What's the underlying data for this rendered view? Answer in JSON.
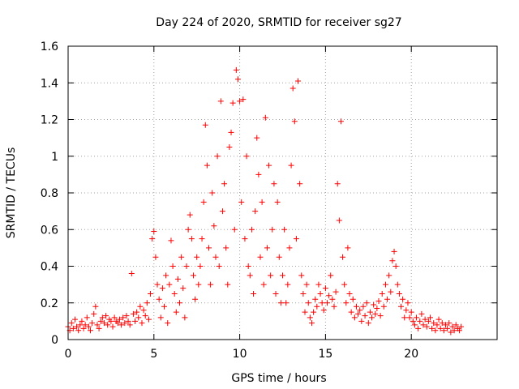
{
  "chart_data": {
    "type": "scatter",
    "title": "Day 224 of 2020, SRMTID for receiver sg27",
    "xlabel": "GPS time / hours",
    "ylabel": "SRMTID / TECUs",
    "xlim": [
      0,
      25
    ],
    "ylim": [
      0,
      1.6
    ],
    "grid": true,
    "marker": "+",
    "color": "#ff0000",
    "xticks": [
      {
        "value": 0,
        "label": "0"
      },
      {
        "value": 5,
        "label": "5"
      },
      {
        "value": 10,
        "label": "10"
      },
      {
        "value": 15,
        "label": "15"
      },
      {
        "value": 20,
        "label": "20"
      }
    ],
    "yticks": [
      {
        "value": 0,
        "label": "0"
      },
      {
        "value": 0.2,
        "label": "0.2"
      },
      {
        "value": 0.4,
        "label": "0.4"
      },
      {
        "value": 0.6,
        "label": "0.6"
      },
      {
        "value": 0.8,
        "label": "0.8"
      },
      {
        "value": 1.0,
        "label": "1"
      },
      {
        "value": 1.2,
        "label": "1.2"
      },
      {
        "value": 1.4,
        "label": "1.4"
      },
      {
        "value": 1.6,
        "label": "1.6"
      }
    ],
    "series": [
      {
        "name": "sg27",
        "points": [
          [
            0.0,
            0.07
          ],
          [
            0.1,
            0.05
          ],
          [
            0.2,
            0.09
          ],
          [
            0.3,
            0.06
          ],
          [
            0.4,
            0.11
          ],
          [
            0.5,
            0.07
          ],
          [
            0.6,
            0.05
          ],
          [
            0.7,
            0.08
          ],
          [
            0.8,
            0.1
          ],
          [
            0.9,
            0.06
          ],
          [
            1.0,
            0.08
          ],
          [
            1.1,
            0.12
          ],
          [
            1.2,
            0.07
          ],
          [
            1.3,
            0.05
          ],
          [
            1.4,
            0.09
          ],
          [
            1.5,
            0.14
          ],
          [
            1.6,
            0.18
          ],
          [
            1.7,
            0.08
          ],
          [
            1.8,
            0.06
          ],
          [
            1.9,
            0.1
          ],
          [
            2.0,
            0.12
          ],
          [
            2.1,
            0.09
          ],
          [
            2.2,
            0.13
          ],
          [
            2.3,
            0.08
          ],
          [
            2.4,
            0.11
          ],
          [
            2.5,
            0.1
          ],
          [
            2.6,
            0.07
          ],
          [
            2.7,
            0.12
          ],
          [
            2.8,
            0.1
          ],
          [
            2.9,
            0.09
          ],
          [
            3.0,
            0.11
          ],
          [
            3.1,
            0.08
          ],
          [
            3.2,
            0.12
          ],
          [
            3.3,
            0.09
          ],
          [
            3.4,
            0.13
          ],
          [
            3.5,
            0.1
          ],
          [
            3.6,
            0.08
          ],
          [
            3.7,
            0.36
          ],
          [
            3.8,
            0.14
          ],
          [
            3.9,
            0.1
          ],
          [
            4.0,
            0.15
          ],
          [
            4.1,
            0.12
          ],
          [
            4.2,
            0.18
          ],
          [
            4.3,
            0.09
          ],
          [
            4.4,
            0.16
          ],
          [
            4.5,
            0.13
          ],
          [
            4.6,
            0.2
          ],
          [
            4.7,
            0.11
          ],
          [
            4.8,
            0.25
          ],
          [
            4.9,
            0.55
          ],
          [
            5.0,
            0.59
          ],
          [
            5.1,
            0.45
          ],
          [
            5.2,
            0.3
          ],
          [
            5.3,
            0.22
          ],
          [
            5.4,
            0.12
          ],
          [
            5.5,
            0.28
          ],
          [
            5.6,
            0.18
          ],
          [
            5.7,
            0.35
          ],
          [
            5.8,
            0.09
          ],
          [
            5.9,
            0.3
          ],
          [
            6.0,
            0.54
          ],
          [
            6.1,
            0.4
          ],
          [
            6.2,
            0.25
          ],
          [
            6.3,
            0.15
          ],
          [
            6.4,
            0.33
          ],
          [
            6.5,
            0.2
          ],
          [
            6.6,
            0.45
          ],
          [
            6.7,
            0.28
          ],
          [
            6.8,
            0.12
          ],
          [
            6.9,
            0.4
          ],
          [
            7.0,
            0.6
          ],
          [
            7.1,
            0.68
          ],
          [
            7.2,
            0.55
          ],
          [
            7.3,
            0.35
          ],
          [
            7.4,
            0.22
          ],
          [
            7.5,
            0.45
          ],
          [
            7.6,
            0.3
          ],
          [
            7.7,
            0.4
          ],
          [
            7.8,
            0.55
          ],
          [
            7.9,
            0.75
          ],
          [
            8.0,
            1.17
          ],
          [
            8.1,
            0.95
          ],
          [
            8.2,
            0.5
          ],
          [
            8.3,
            0.3
          ],
          [
            8.4,
            0.8
          ],
          [
            8.5,
            0.62
          ],
          [
            8.6,
            0.45
          ],
          [
            8.7,
            1.0
          ],
          [
            8.8,
            0.4
          ],
          [
            8.9,
            1.3
          ],
          [
            9.0,
            0.7
          ],
          [
            9.1,
            0.85
          ],
          [
            9.2,
            0.5
          ],
          [
            9.3,
            0.3
          ],
          [
            9.4,
            1.05
          ],
          [
            9.5,
            1.13
          ],
          [
            9.6,
            1.29
          ],
          [
            9.7,
            0.6
          ],
          [
            9.8,
            1.47
          ],
          [
            9.9,
            1.42
          ],
          [
            10.0,
            1.3
          ],
          [
            10.1,
            0.75
          ],
          [
            10.2,
            1.31
          ],
          [
            10.3,
            0.55
          ],
          [
            10.4,
            1.0
          ],
          [
            10.5,
            0.4
          ],
          [
            10.6,
            0.35
          ],
          [
            10.7,
            0.6
          ],
          [
            10.8,
            0.25
          ],
          [
            10.9,
            0.7
          ],
          [
            11.0,
            1.1
          ],
          [
            11.1,
            0.9
          ],
          [
            11.2,
            0.45
          ],
          [
            11.3,
            0.75
          ],
          [
            11.4,
            0.3
          ],
          [
            11.5,
            1.21
          ],
          [
            11.6,
            0.5
          ],
          [
            11.7,
            0.95
          ],
          [
            11.8,
            0.35
          ],
          [
            11.9,
            0.6
          ],
          [
            12.0,
            0.85
          ],
          [
            12.1,
            0.25
          ],
          [
            12.2,
            0.75
          ],
          [
            12.3,
            0.45
          ],
          [
            12.4,
            0.2
          ],
          [
            12.5,
            0.35
          ],
          [
            12.6,
            0.6
          ],
          [
            12.7,
            0.2
          ],
          [
            12.8,
            0.3
          ],
          [
            12.9,
            0.5
          ],
          [
            13.0,
            0.95
          ],
          [
            13.1,
            1.37
          ],
          [
            13.2,
            1.19
          ],
          [
            13.3,
            0.55
          ],
          [
            13.4,
            1.41
          ],
          [
            13.5,
            0.85
          ],
          [
            13.6,
            0.35
          ],
          [
            13.7,
            0.25
          ],
          [
            13.8,
            0.15
          ],
          [
            13.9,
            0.3
          ],
          [
            14.0,
            0.2
          ],
          [
            14.1,
            0.12
          ],
          [
            14.2,
            0.09
          ],
          [
            14.3,
            0.15
          ],
          [
            14.4,
            0.22
          ],
          [
            14.5,
            0.18
          ],
          [
            14.6,
            0.3
          ],
          [
            14.7,
            0.25
          ],
          [
            14.8,
            0.2
          ],
          [
            14.9,
            0.16
          ],
          [
            15.0,
            0.28
          ],
          [
            15.1,
            0.2
          ],
          [
            15.2,
            0.24
          ],
          [
            15.3,
            0.35
          ],
          [
            15.4,
            0.22
          ],
          [
            15.5,
            0.18
          ],
          [
            15.6,
            0.26
          ],
          [
            15.7,
            0.85
          ],
          [
            15.8,
            0.65
          ],
          [
            15.9,
            1.19
          ],
          [
            16.0,
            0.45
          ],
          [
            16.1,
            0.3
          ],
          [
            16.2,
            0.2
          ],
          [
            16.3,
            0.5
          ],
          [
            16.4,
            0.25
          ],
          [
            16.5,
            0.15
          ],
          [
            16.6,
            0.22
          ],
          [
            16.7,
            0.12
          ],
          [
            16.8,
            0.18
          ],
          [
            16.9,
            0.14
          ],
          [
            17.0,
            0.16
          ],
          [
            17.1,
            0.1
          ],
          [
            17.2,
            0.18
          ],
          [
            17.3,
            0.13
          ],
          [
            17.4,
            0.2
          ],
          [
            17.5,
            0.09
          ],
          [
            17.6,
            0.15
          ],
          [
            17.7,
            0.12
          ],
          [
            17.8,
            0.19
          ],
          [
            17.9,
            0.14
          ],
          [
            18.0,
            0.17
          ],
          [
            18.1,
            0.21
          ],
          [
            18.2,
            0.13
          ],
          [
            18.3,
            0.25
          ],
          [
            18.4,
            0.18
          ],
          [
            18.5,
            0.3
          ],
          [
            18.6,
            0.22
          ],
          [
            18.7,
            0.35
          ],
          [
            18.8,
            0.26
          ],
          [
            18.9,
            0.43
          ],
          [
            19.0,
            0.48
          ],
          [
            19.1,
            0.4
          ],
          [
            19.2,
            0.3
          ],
          [
            19.3,
            0.25
          ],
          [
            19.4,
            0.18
          ],
          [
            19.5,
            0.22
          ],
          [
            19.6,
            0.12
          ],
          [
            19.7,
            0.16
          ],
          [
            19.8,
            0.2
          ],
          [
            19.9,
            0.12
          ],
          [
            20.0,
            0.15
          ],
          [
            20.1,
            0.1
          ],
          [
            20.2,
            0.08
          ],
          [
            20.3,
            0.12
          ],
          [
            20.4,
            0.06
          ],
          [
            20.5,
            0.1
          ],
          [
            20.6,
            0.14
          ],
          [
            20.7,
            0.08
          ],
          [
            20.8,
            0.11
          ],
          [
            20.9,
            0.07
          ],
          [
            21.0,
            0.1
          ],
          [
            21.1,
            0.12
          ],
          [
            21.2,
            0.06
          ],
          [
            21.3,
            0.09
          ],
          [
            21.4,
            0.05
          ],
          [
            21.5,
            0.08
          ],
          [
            21.6,
            0.11
          ],
          [
            21.7,
            0.06
          ],
          [
            21.8,
            0.09
          ],
          [
            21.9,
            0.05
          ],
          [
            22.0,
            0.08
          ],
          [
            22.1,
            0.06
          ],
          [
            22.2,
            0.09
          ],
          [
            22.3,
            0.04
          ],
          [
            22.4,
            0.07
          ],
          [
            22.5,
            0.05
          ],
          [
            22.6,
            0.08
          ],
          [
            22.7,
            0.06
          ],
          [
            22.8,
            0.05
          ],
          [
            22.9,
            0.07
          ]
        ]
      }
    ]
  }
}
